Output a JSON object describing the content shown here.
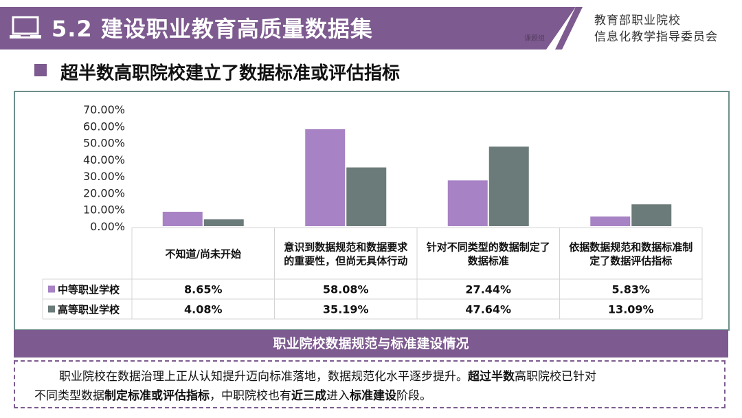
{
  "header": {
    "title": "5.2 建设职业教育高质量数据集",
    "stamp": "课题组",
    "org_line1": "教育部职业院校",
    "org_line2": "信息化教学指导委员会"
  },
  "subtitle": "超半数高职院校建立了数据标准或评估指标",
  "colors": {
    "accent": "#7d5a8f",
    "series1": "#a782c4",
    "series2": "#6b7b79",
    "border": "#6d8f8d"
  },
  "chart_data": {
    "type": "bar",
    "categories": [
      "不知道/尚未开始",
      "意识到数据规范和数据要求的重要性，但尚无具体行动",
      "针对不同类型的数据制定了数据标准",
      "依据数据规范和数据标准制定了数据评估指标"
    ],
    "series": [
      {
        "name": "中等职业学校",
        "values": [
          8.65,
          58.08,
          27.44,
          5.83
        ],
        "labels": [
          "8.65%",
          "58.08%",
          "27.44%",
          "5.83%"
        ]
      },
      {
        "name": "高等职业学校",
        "values": [
          4.08,
          35.19,
          47.64,
          13.09
        ],
        "labels": [
          "4.08%",
          "35.19%",
          "47.64%",
          "13.09%"
        ]
      }
    ],
    "yticks": [
      "0.00%",
      "10.00%",
      "20.00%",
      "30.00%",
      "40.00%",
      "50.00%",
      "60.00%",
      "70.00%"
    ],
    "ylim": [
      0,
      70
    ],
    "legend": "data-table"
  },
  "caption": "职业院校数据规范与标准建设情况",
  "note": {
    "t1": "职业院校在数据治理上正从认知提升迈向标准落地，数据规范化水平逐步提升。",
    "b1": "超过半数",
    "t2": "高职院校已针对",
    "t3": "不同类型数据",
    "b2": "制定标准或评估指标",
    "t4": "，中职院校也有",
    "b3": "近三成",
    "t5": "进入",
    "b4": "标准建设",
    "t6": "阶段。"
  }
}
